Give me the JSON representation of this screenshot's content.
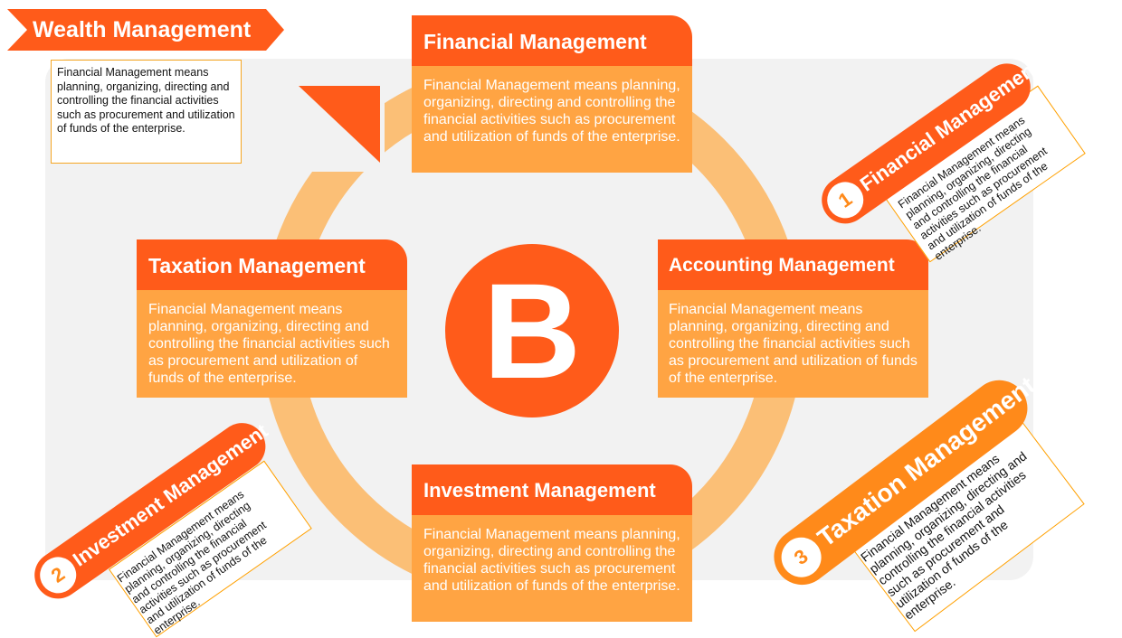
{
  "header": {
    "title": "Wealth Management"
  },
  "intro_note": "Financial Management means planning, organizing, directing and controlling the financial activities such as procurement and utilization of funds of the enterprise.",
  "center": {
    "letter": "B"
  },
  "cards": {
    "top": {
      "title": "Financial Management",
      "body": "Financial Management means planning, organizing, directing and controlling the financial activities such as procurement and utilization of funds of the enterprise."
    },
    "left": {
      "title": "Taxation Management",
      "body": "Financial Management means planning, organizing, directing and controlling the financial activities such as procurement and utilization of funds of the enterprise."
    },
    "right": {
      "title": "Accounting Management",
      "body": "Financial Management means planning, organizing, directing and controlling the financial activities such as procurement and utilization of funds of the enterprise."
    },
    "bottom": {
      "title": "Investment Management",
      "body": "Financial Management means planning, organizing, directing and controlling the financial activities such as procurement and utilization of funds of the enterprise."
    }
  },
  "tilted": [
    {
      "number": "1",
      "title": "Financial Management",
      "text": "Financial Management means planning, organizing, directing and controlling the financial activities such as procurement and utilization of funds of the enterprise."
    },
    {
      "number": "2",
      "title": "Investment Management",
      "text": "Financial Management means planning, organizing, directing and controlling the financial activities such as procurement and utilization of funds of the enterprise."
    },
    {
      "number": "3",
      "title": "Taxation Management",
      "text": "Financial Management means planning, organizing, directing and controlling the financial activities such as procurement and utilization of funds of the enterprise."
    }
  ],
  "colors": {
    "primary": "#ff5b1a",
    "light": "#ffa443",
    "ring": "#fbbf76",
    "accent": "#ff8a1a",
    "panel": "#f2f2f2"
  }
}
